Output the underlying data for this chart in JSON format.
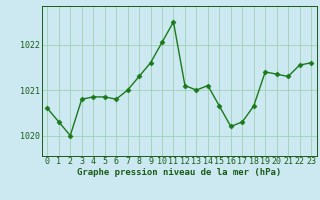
{
  "x": [
    0,
    1,
    2,
    3,
    4,
    5,
    6,
    7,
    8,
    9,
    10,
    11,
    12,
    13,
    14,
    15,
    16,
    17,
    18,
    19,
    20,
    21,
    22,
    23
  ],
  "y": [
    1020.6,
    1020.3,
    1020.0,
    1020.8,
    1020.85,
    1020.85,
    1020.8,
    1021.0,
    1021.3,
    1021.6,
    1022.05,
    1022.5,
    1021.1,
    1021.0,
    1021.1,
    1020.65,
    1020.2,
    1020.3,
    1020.65,
    1021.4,
    1021.35,
    1021.3,
    1021.55,
    1021.6
  ],
  "line_color": "#1a7a1a",
  "marker": "D",
  "marker_size": 2.5,
  "bg_color": "#cce8f0",
  "grid_color": "#99ccaa",
  "axis_color": "#1a5c1a",
  "xlabel": "Graphe pression niveau de la mer (hPa)",
  "xlabel_fontsize": 6.5,
  "tick_label_color": "#1a5c1a",
  "tick_fontsize": 6.0,
  "yticks": [
    1020,
    1021,
    1022
  ],
  "ylim": [
    1019.55,
    1022.85
  ],
  "xlim": [
    -0.5,
    23.5
  ],
  "linewidth": 1.0
}
